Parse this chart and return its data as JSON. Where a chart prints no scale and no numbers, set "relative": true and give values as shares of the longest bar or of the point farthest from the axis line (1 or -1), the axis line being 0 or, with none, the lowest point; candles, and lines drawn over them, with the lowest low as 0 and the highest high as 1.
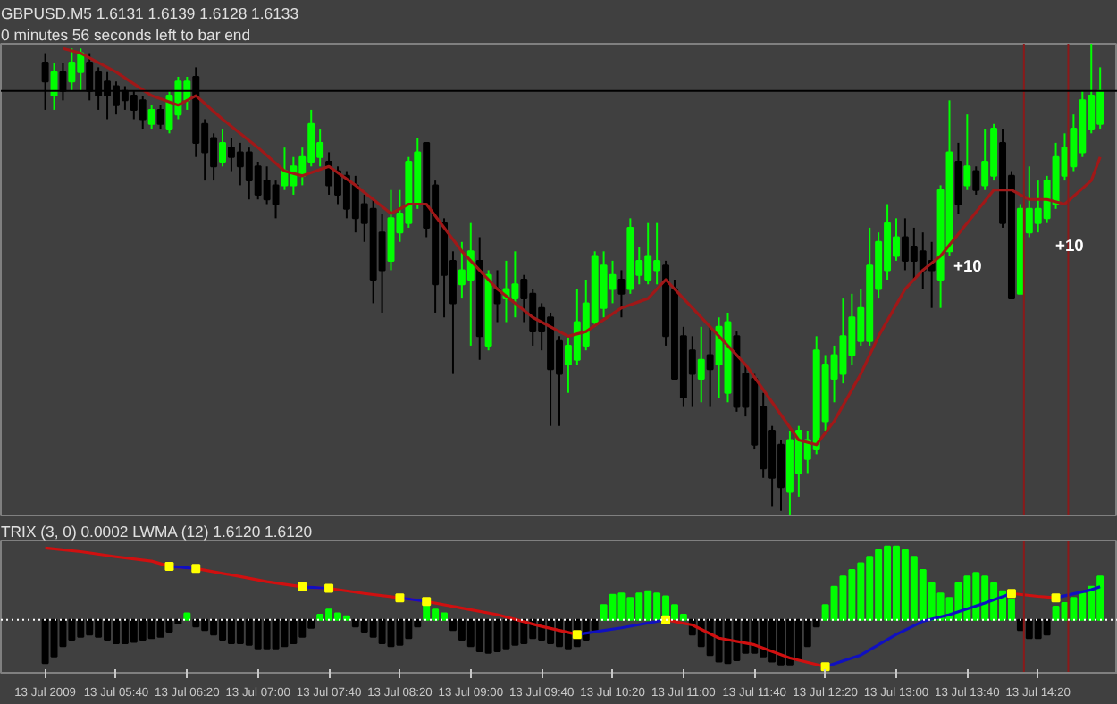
{
  "chart_data": [
    {
      "type": "candlestick",
      "title": "GBPUSD.M5  1.6131 1.6139 1.6128 1.6133",
      "subtitle": "0 minutes 56 seconds left to bar end",
      "relative": true,
      "tick_labels": false,
      "xlim": [
        "2009-07-13T04:35",
        "2009-07-13T15:05"
      ],
      "x": [
        "2009-07-13T05:00",
        "2009-07-13T05:05",
        "2009-07-13T05:10",
        "2009-07-13T05:15",
        "2009-07-13T05:20",
        "2009-07-13T05:25",
        "2009-07-13T05:30",
        "2009-07-13T05:35",
        "2009-07-13T05:40",
        "2009-07-13T05:45",
        "2009-07-13T05:50",
        "2009-07-13T05:55",
        "2009-07-13T06:00",
        "2009-07-13T06:05",
        "2009-07-13T06:10",
        "2009-07-13T06:15",
        "2009-07-13T06:20",
        "2009-07-13T06:25",
        "2009-07-13T06:30",
        "2009-07-13T06:35",
        "2009-07-13T06:40",
        "2009-07-13T06:45",
        "2009-07-13T06:50",
        "2009-07-13T06:55",
        "2009-07-13T07:00",
        "2009-07-13T07:05",
        "2009-07-13T07:10",
        "2009-07-13T07:15",
        "2009-07-13T07:20",
        "2009-07-13T07:25",
        "2009-07-13T07:30",
        "2009-07-13T07:35",
        "2009-07-13T07:40",
        "2009-07-13T07:45",
        "2009-07-13T07:50",
        "2009-07-13T07:55",
        "2009-07-13T08:00",
        "2009-07-13T08:05",
        "2009-07-13T08:10",
        "2009-07-13T08:15",
        "2009-07-13T08:20",
        "2009-07-13T08:25",
        "2009-07-13T08:30",
        "2009-07-13T08:35",
        "2009-07-13T08:40",
        "2009-07-13T08:45",
        "2009-07-13T08:50",
        "2009-07-13T08:55",
        "2009-07-13T09:00",
        "2009-07-13T09:05",
        "2009-07-13T09:10",
        "2009-07-13T09:15",
        "2009-07-13T09:20",
        "2009-07-13T09:25",
        "2009-07-13T09:30",
        "2009-07-13T09:35",
        "2009-07-13T09:40",
        "2009-07-13T09:45",
        "2009-07-13T09:50",
        "2009-07-13T09:55",
        "2009-07-13T10:00",
        "2009-07-13T10:05",
        "2009-07-13T10:10",
        "2009-07-13T10:15",
        "2009-07-13T10:20",
        "2009-07-13T10:25",
        "2009-07-13T10:30",
        "2009-07-13T10:35",
        "2009-07-13T10:40",
        "2009-07-13T10:45",
        "2009-07-13T10:50",
        "2009-07-13T10:55",
        "2009-07-13T11:00",
        "2009-07-13T11:05",
        "2009-07-13T11:10",
        "2009-07-13T11:15",
        "2009-07-13T11:20",
        "2009-07-13T11:25",
        "2009-07-13T11:30",
        "2009-07-13T11:35",
        "2009-07-13T11:40",
        "2009-07-13T11:45",
        "2009-07-13T11:50",
        "2009-07-13T11:55",
        "2009-07-13T12:00",
        "2009-07-13T12:05",
        "2009-07-13T12:10",
        "2009-07-13T12:15",
        "2009-07-13T12:20",
        "2009-07-13T12:25",
        "2009-07-13T12:30",
        "2009-07-13T12:35",
        "2009-07-13T12:40",
        "2009-07-13T12:45",
        "2009-07-13T12:50",
        "2009-07-13T12:55",
        "2009-07-13T13:00",
        "2009-07-13T13:05",
        "2009-07-13T13:10",
        "2009-07-13T13:15",
        "2009-07-13T13:20",
        "2009-07-13T13:25",
        "2009-07-13T13:30",
        "2009-07-13T13:35",
        "2009-07-13T13:40",
        "2009-07-13T13:45",
        "2009-07-13T13:50",
        "2009-07-13T13:55",
        "2009-07-13T14:00",
        "2009-07-13T14:05",
        "2009-07-13T14:10",
        "2009-07-13T14:15",
        "2009-07-13T14:20",
        "2009-07-13T14:25",
        "2009-07-13T14:30",
        "2009-07-13T14:35",
        "2009-07-13T14:40",
        "2009-07-13T14:45",
        "2009-07-13T14:50",
        "2009-07-13T14:55"
      ],
      "ohlc": [
        [
          0.96,
          0.98,
          0.86,
          0.92
        ],
        [
          0.89,
          0.96,
          0.86,
          0.94
        ],
        [
          0.94,
          0.96,
          0.88,
          0.9
        ],
        [
          0.92,
          0.99,
          0.9,
          0.96
        ],
        [
          0.94,
          0.99,
          0.9,
          0.98
        ],
        [
          0.96,
          0.98,
          0.88,
          0.9
        ],
        [
          0.94,
          0.95,
          0.86,
          0.89
        ],
        [
          0.92,
          0.94,
          0.84,
          0.89
        ],
        [
          0.91,
          0.92,
          0.85,
          0.87
        ],
        [
          0.9,
          0.91,
          0.86,
          0.88
        ],
        [
          0.89,
          0.9,
          0.84,
          0.86
        ],
        [
          0.88,
          0.89,
          0.82,
          0.84
        ],
        [
          0.83,
          0.87,
          0.82,
          0.86
        ],
        [
          0.86,
          0.87,
          0.82,
          0.83
        ],
        [
          0.82,
          0.9,
          0.81,
          0.89
        ],
        [
          0.85,
          0.93,
          0.84,
          0.92
        ],
        [
          0.88,
          0.93,
          0.86,
          0.92
        ],
        [
          0.93,
          0.95,
          0.76,
          0.79
        ],
        [
          0.83,
          0.84,
          0.71,
          0.77
        ],
        [
          0.8,
          0.81,
          0.71,
          0.74
        ],
        [
          0.75,
          0.82,
          0.74,
          0.79
        ],
        [
          0.78,
          0.8,
          0.73,
          0.76
        ],
        [
          0.77,
          0.79,
          0.7,
          0.74
        ],
        [
          0.77,
          0.78,
          0.67,
          0.71
        ],
        [
          0.74,
          0.75,
          0.67,
          0.68
        ],
        [
          0.71,
          0.74,
          0.66,
          0.67
        ],
        [
          0.7,
          0.71,
          0.63,
          0.66
        ],
        [
          0.7,
          0.78,
          0.69,
          0.73
        ],
        [
          0.7,
          0.76,
          0.68,
          0.74
        ],
        [
          0.72,
          0.78,
          0.7,
          0.76
        ],
        [
          0.75,
          0.86,
          0.74,
          0.83
        ],
        [
          0.76,
          0.82,
          0.74,
          0.79
        ],
        [
          0.75,
          0.77,
          0.68,
          0.7
        ],
        [
          0.73,
          0.74,
          0.66,
          0.68
        ],
        [
          0.72,
          0.73,
          0.63,
          0.65
        ],
        [
          0.7,
          0.72,
          0.6,
          0.63
        ],
        [
          0.66,
          0.68,
          0.58,
          0.62
        ],
        [
          0.65,
          0.67,
          0.45,
          0.5
        ],
        [
          0.6,
          0.64,
          0.43,
          0.52
        ],
        [
          0.54,
          0.69,
          0.52,
          0.63
        ],
        [
          0.6,
          0.69,
          0.58,
          0.64
        ],
        [
          0.62,
          0.76,
          0.61,
          0.75
        ],
        [
          0.66,
          0.8,
          0.65,
          0.77
        ],
        [
          0.79,
          0.79,
          0.59,
          0.61
        ],
        [
          0.7,
          0.71,
          0.43,
          0.49
        ],
        [
          0.62,
          0.63,
          0.42,
          0.51
        ],
        [
          0.54,
          0.56,
          0.3,
          0.45
        ],
        [
          0.49,
          0.58,
          0.46,
          0.52
        ],
        [
          0.5,
          0.62,
          0.36,
          0.56
        ],
        [
          0.54,
          0.59,
          0.33,
          0.38
        ],
        [
          0.36,
          0.52,
          0.35,
          0.51
        ],
        [
          0.48,
          0.52,
          0.41,
          0.45
        ],
        [
          0.46,
          0.54,
          0.41,
          0.48
        ],
        [
          0.46,
          0.56,
          0.42,
          0.49
        ],
        [
          0.5,
          0.51,
          0.41,
          0.46
        ],
        [
          0.47,
          0.48,
          0.36,
          0.39
        ],
        [
          0.44,
          0.45,
          0.35,
          0.39
        ],
        [
          0.42,
          0.43,
          0.19,
          0.31
        ],
        [
          0.37,
          0.38,
          0.19,
          0.3
        ],
        [
          0.32,
          0.38,
          0.26,
          0.36
        ],
        [
          0.33,
          0.48,
          0.32,
          0.41
        ],
        [
          0.36,
          0.5,
          0.35,
          0.45
        ],
        [
          0.41,
          0.56,
          0.4,
          0.55
        ],
        [
          0.44,
          0.56,
          0.42,
          0.53
        ],
        [
          0.48,
          0.54,
          0.45,
          0.51
        ],
        [
          0.5,
          0.52,
          0.42,
          0.47
        ],
        [
          0.48,
          0.63,
          0.47,
          0.61
        ],
        [
          0.51,
          0.57,
          0.49,
          0.54
        ],
        [
          0.5,
          0.62,
          0.49,
          0.55
        ],
        [
          0.52,
          0.62,
          0.49,
          0.54
        ],
        [
          0.53,
          0.54,
          0.36,
          0.38
        ],
        [
          0.48,
          0.5,
          0.29,
          0.29
        ],
        [
          0.38,
          0.4,
          0.23,
          0.25
        ],
        [
          0.35,
          0.38,
          0.23,
          0.3
        ],
        [
          0.29,
          0.4,
          0.24,
          0.33
        ],
        [
          0.34,
          0.4,
          0.23,
          0.31
        ],
        [
          0.32,
          0.42,
          0.25,
          0.4
        ],
        [
          0.26,
          0.43,
          0.24,
          0.41
        ],
        [
          0.38,
          0.39,
          0.22,
          0.23
        ],
        [
          0.3,
          0.32,
          0.21,
          0.23
        ],
        [
          0.29,
          0.3,
          0.14,
          0.15
        ],
        [
          0.23,
          0.26,
          0.08,
          0.1
        ],
        [
          0.18,
          0.19,
          0.02,
          0.08
        ],
        [
          0.15,
          0.16,
          0.01,
          0.06
        ],
        [
          0.05,
          0.18,
          0.0,
          0.16
        ],
        [
          0.09,
          0.19,
          0.04,
          0.18
        ],
        [
          0.12,
          0.18,
          0.09,
          0.16
        ],
        [
          0.14,
          0.38,
          0.13,
          0.35
        ],
        [
          0.2,
          0.34,
          0.18,
          0.32
        ],
        [
          0.29,
          0.36,
          0.24,
          0.34
        ],
        [
          0.3,
          0.46,
          0.28,
          0.38
        ],
        [
          0.34,
          0.47,
          0.32,
          0.42
        ],
        [
          0.37,
          0.48,
          0.36,
          0.44
        ],
        [
          0.37,
          0.61,
          0.36,
          0.53
        ],
        [
          0.48,
          0.6,
          0.46,
          0.58
        ],
        [
          0.52,
          0.66,
          0.5,
          0.62
        ],
        [
          0.55,
          0.63,
          0.54,
          0.59
        ],
        [
          0.59,
          0.63,
          0.52,
          0.54
        ],
        [
          0.57,
          0.61,
          0.5,
          0.54
        ],
        [
          0.56,
          0.6,
          0.48,
          0.52
        ],
        [
          0.54,
          0.58,
          0.44,
          0.52
        ],
        [
          0.5,
          0.7,
          0.44,
          0.69
        ],
        [
          0.56,
          0.88,
          0.55,
          0.77
        ],
        [
          0.75,
          0.79,
          0.64,
          0.66
        ],
        [
          0.7,
          0.85,
          0.69,
          0.74
        ],
        [
          0.73,
          0.74,
          0.68,
          0.69
        ],
        [
          0.7,
          0.82,
          0.69,
          0.75
        ],
        [
          0.72,
          0.83,
          0.71,
          0.82
        ],
        [
          0.79,
          0.82,
          0.61,
          0.62
        ],
        [
          0.72,
          0.73,
          0.46,
          0.46
        ],
        [
          0.47,
          0.66,
          0.47,
          0.65
        ],
        [
          0.6,
          0.74,
          0.59,
          0.65
        ],
        [
          0.62,
          0.71,
          0.6,
          0.65
        ],
        [
          0.63,
          0.72,
          0.62,
          0.71
        ],
        [
          0.66,
          0.79,
          0.65,
          0.76
        ],
        [
          0.72,
          0.81,
          0.71,
          0.78
        ],
        [
          0.74,
          0.85,
          0.73,
          0.82
        ],
        [
          0.77,
          0.9,
          0.76,
          0.88
        ],
        [
          0.82,
          1.0,
          0.81,
          0.89
        ],
        [
          0.83,
          0.95,
          0.82,
          0.9
        ]
      ],
      "colors": [
        "#000000",
        "#00ff00",
        "#000000",
        "#00ff00",
        "#00ff00",
        "#000000",
        "#000000",
        "#000000",
        "#000000",
        "#000000",
        "#000000",
        "#000000",
        "#00ff00",
        "#000000",
        "#00ff00",
        "#00ff00",
        "#00ff00",
        "#000000",
        "#000000",
        "#000000",
        "#00ff00",
        "#000000",
        "#000000",
        "#000000",
        "#000000",
        "#000000",
        "#000000",
        "#00ff00",
        "#00ff00",
        "#00ff00",
        "#00ff00",
        "#00ff00",
        "#000000",
        "#000000",
        "#000000",
        "#000000",
        "#000000",
        "#000000",
        "#000000",
        "#00ff00",
        "#00ff00",
        "#00ff00",
        "#00ff00",
        "#000000",
        "#000000",
        "#000000",
        "#000000",
        "#00ff00",
        "#00ff00",
        "#000000",
        "#00ff00",
        "#000000",
        "#00ff00",
        "#00ff00",
        "#000000",
        "#000000",
        "#000000",
        "#000000",
        "#000000",
        "#00ff00",
        "#00ff00",
        "#00ff00",
        "#00ff00",
        "#00ff00",
        "#00ff00",
        "#000000",
        "#00ff00",
        "#00ff00",
        "#00ff00",
        "#00ff00",
        "#000000",
        "#000000",
        "#000000",
        "#000000",
        "#00ff00",
        "#000000",
        "#00ff00",
        "#00ff00",
        "#000000",
        "#000000",
        "#000000",
        "#000000",
        "#000000",
        "#000000",
        "#00ff00",
        "#00ff00",
        "#00ff00",
        "#00ff00",
        "#00ff00",
        "#00ff00",
        "#00ff00",
        "#00ff00",
        "#00ff00",
        "#00ff00",
        "#00ff00",
        "#00ff00",
        "#00ff00",
        "#000000",
        "#000000",
        "#000000",
        "#000000",
        "#00ff00",
        "#00ff00",
        "#000000",
        "#00ff00",
        "#000000",
        "#00ff00",
        "#00ff00",
        "#000000",
        "#000000",
        "#00ff00",
        "#00ff00",
        "#00ff00",
        "#00ff00",
        "#00ff00",
        "#00ff00",
        "#00ff00",
        "#00ff00",
        "#00ff00",
        "#00ff00"
      ],
      "series": [
        {
          "type": "line",
          "color": "#a01818",
          "x": [
            "2009-07-13T05:10",
            "2009-07-13T05:20",
            "2009-07-13T05:40",
            "2009-07-13T06:00",
            "2009-07-13T06:15",
            "2009-07-13T06:25",
            "2009-07-13T06:40",
            "2009-07-13T07:00",
            "2009-07-13T07:15",
            "2009-07-13T07:25",
            "2009-07-13T07:40",
            "2009-07-13T07:55",
            "2009-07-13T08:15",
            "2009-07-13T08:25",
            "2009-07-13T08:35",
            "2009-07-13T08:55",
            "2009-07-13T09:15",
            "2009-07-13T09:35",
            "2009-07-13T09:55",
            "2009-07-13T10:05",
            "2009-07-13T10:25",
            "2009-07-13T10:40",
            "2009-07-13T10:50",
            "2009-07-13T11:05",
            "2009-07-13T11:20",
            "2009-07-13T11:35",
            "2009-07-13T11:50",
            "2009-07-13T12:05",
            "2009-07-13T12:15",
            "2009-07-13T12:25",
            "2009-07-13T12:40",
            "2009-07-13T12:50",
            "2009-07-13T13:05",
            "2009-07-13T13:15",
            "2009-07-13T13:25",
            "2009-07-13T13:40",
            "2009-07-13T13:55",
            "2009-07-13T14:05",
            "2009-07-13T14:15",
            "2009-07-13T14:25",
            "2009-07-13T14:35",
            "2009-07-13T14:50",
            "2009-07-13T14:55"
          ],
          "values": [
            0.99,
            0.98,
            0.94,
            0.89,
            0.87,
            0.89,
            0.84,
            0.78,
            0.73,
            0.72,
            0.74,
            0.7,
            0.64,
            0.66,
            0.66,
            0.56,
            0.48,
            0.42,
            0.38,
            0.39,
            0.44,
            0.46,
            0.5,
            0.44,
            0.38,
            0.32,
            0.24,
            0.16,
            0.15,
            0.2,
            0.3,
            0.38,
            0.48,
            0.52,
            0.55,
            0.62,
            0.69,
            0.69,
            0.67,
            0.67,
            0.66,
            0.71,
            0.76
          ]
        }
      ],
      "ref_lines": [
        {
          "axis": "y",
          "value": 0.9,
          "color": "#000000"
        },
        {
          "axis": "x",
          "value": "2009-07-13T14:12",
          "color": "#8b1a1a"
        },
        {
          "axis": "x",
          "value": "2009-07-13T14:37",
          "color": "#8b1a1a"
        }
      ],
      "annotations": [
        "+10",
        "+10"
      ]
    },
    {
      "type": "bar",
      "title": "TRIX (3, 0) 0.0002  LWMA (12)  1.6120 1.6120",
      "relative": true,
      "tick_labels": "x",
      "xlim": [
        "2009-07-13T04:35",
        "2009-07-13T15:05"
      ],
      "xticks": [
        {
          "value": "2009-07-13T05:00",
          "label": "13 Jul 2009"
        },
        {
          "value": "2009-07-13T05:40",
          "label": "13 Jul 05:40"
        },
        {
          "value": "2009-07-13T06:20",
          "label": "13 Jul 06:20"
        },
        {
          "value": "2009-07-13T07:00",
          "label": "13 Jul 07:00"
        },
        {
          "value": "2009-07-13T07:40",
          "label": "13 Jul 07:40"
        },
        {
          "value": "2009-07-13T08:20",
          "label": "13 Jul 08:20"
        },
        {
          "value": "2009-07-13T09:00",
          "label": "13 Jul 09:00"
        },
        {
          "value": "2009-07-13T09:40",
          "label": "13 Jul 09:40"
        },
        {
          "value": "2009-07-13T10:20",
          "label": "13 Jul 10:20"
        },
        {
          "value": "2009-07-13T11:00",
          "label": "13 Jul 11:00"
        },
        {
          "value": "2009-07-13T11:40",
          "label": "13 Jul 11:40"
        },
        {
          "value": "2009-07-13T12:20",
          "label": "13 Jul 12:20"
        },
        {
          "value": "2009-07-13T13:00",
          "label": "13 Jul 13:00"
        },
        {
          "value": "2009-07-13T13:40",
          "label": "13 Jul 13:40"
        },
        {
          "value": "2009-07-13T14:20",
          "label": "13 Jul 14:20"
        }
      ],
      "x": [
        "2009-07-13T05:00",
        "2009-07-13T05:05",
        "2009-07-13T05:10",
        "2009-07-13T05:15",
        "2009-07-13T05:20",
        "2009-07-13T05:25",
        "2009-07-13T05:30",
        "2009-07-13T05:35",
        "2009-07-13T05:40",
        "2009-07-13T05:45",
        "2009-07-13T05:50",
        "2009-07-13T05:55",
        "2009-07-13T06:00",
        "2009-07-13T06:05",
        "2009-07-13T06:10",
        "2009-07-13T06:15",
        "2009-07-13T06:20",
        "2009-07-13T06:25",
        "2009-07-13T06:30",
        "2009-07-13T06:35",
        "2009-07-13T06:40",
        "2009-07-13T06:45",
        "2009-07-13T06:50",
        "2009-07-13T06:55",
        "2009-07-13T07:00",
        "2009-07-13T07:05",
        "2009-07-13T07:10",
        "2009-07-13T07:15",
        "2009-07-13T07:20",
        "2009-07-13T07:25",
        "2009-07-13T07:30",
        "2009-07-13T07:35",
        "2009-07-13T07:40",
        "2009-07-13T07:45",
        "2009-07-13T07:50",
        "2009-07-13T07:55",
        "2009-07-13T08:00",
        "2009-07-13T08:05",
        "2009-07-13T08:10",
        "2009-07-13T08:15",
        "2009-07-13T08:20",
        "2009-07-13T08:25",
        "2009-07-13T08:30",
        "2009-07-13T08:35",
        "2009-07-13T08:40",
        "2009-07-13T08:45",
        "2009-07-13T08:50",
        "2009-07-13T08:55",
        "2009-07-13T09:00",
        "2009-07-13T09:05",
        "2009-07-13T09:10",
        "2009-07-13T09:15",
        "2009-07-13T09:20",
        "2009-07-13T09:25",
        "2009-07-13T09:30",
        "2009-07-13T09:35",
        "2009-07-13T09:40",
        "2009-07-13T09:45",
        "2009-07-13T09:50",
        "2009-07-13T09:55",
        "2009-07-13T10:00",
        "2009-07-13T10:05",
        "2009-07-13T10:10",
        "2009-07-13T10:15",
        "2009-07-13T10:20",
        "2009-07-13T10:25",
        "2009-07-13T10:30",
        "2009-07-13T10:35",
        "2009-07-13T10:40",
        "2009-07-13T10:45",
        "2009-07-13T10:50",
        "2009-07-13T10:55",
        "2009-07-13T11:00",
        "2009-07-13T11:05",
        "2009-07-13T11:10",
        "2009-07-13T11:15",
        "2009-07-13T11:20",
        "2009-07-13T11:25",
        "2009-07-13T11:30",
        "2009-07-13T11:35",
        "2009-07-13T11:40",
        "2009-07-13T11:45",
        "2009-07-13T11:50",
        "2009-07-13T11:55",
        "2009-07-13T12:00",
        "2009-07-13T12:05",
        "2009-07-13T12:10",
        "2009-07-13T12:15",
        "2009-07-13T12:20",
        "2009-07-13T12:25",
        "2009-07-13T12:30",
        "2009-07-13T12:35",
        "2009-07-13T12:40",
        "2009-07-13T12:45",
        "2009-07-13T12:50",
        "2009-07-13T12:55",
        "2009-07-13T13:00",
        "2009-07-13T13:05",
        "2009-07-13T13:10",
        "2009-07-13T13:15",
        "2009-07-13T13:20",
        "2009-07-13T13:25",
        "2009-07-13T13:30",
        "2009-07-13T13:35",
        "2009-07-13T13:40",
        "2009-07-13T13:45",
        "2009-07-13T13:50",
        "2009-07-13T13:55",
        "2009-07-13T14:00",
        "2009-07-13T14:05",
        "2009-07-13T14:10",
        "2009-07-13T14:15",
        "2009-07-13T14:20",
        "2009-07-13T14:25",
        "2009-07-13T14:30",
        "2009-07-13T14:35",
        "2009-07-13T14:40",
        "2009-07-13T14:45",
        "2009-07-13T14:50",
        "2009-07-13T14:55"
      ],
      "series": [
        {
          "type": "bar",
          "values": [
            -0.59,
            -0.5,
            -0.36,
            -0.27,
            -0.23,
            -0.2,
            -0.23,
            -0.27,
            -0.32,
            -0.32,
            -0.3,
            -0.27,
            -0.25,
            -0.23,
            -0.16,
            -0.05,
            0.09,
            -0.09,
            -0.14,
            -0.2,
            -0.27,
            -0.32,
            -0.32,
            -0.34,
            -0.39,
            -0.39,
            -0.39,
            -0.36,
            -0.32,
            -0.23,
            -0.11,
            0.07,
            0.14,
            0.09,
            0.05,
            -0.09,
            -0.16,
            -0.23,
            -0.32,
            -0.36,
            -0.34,
            -0.25,
            -0.09,
            0.2,
            0.14,
            0.09,
            -0.14,
            -0.27,
            -0.36,
            -0.43,
            -0.45,
            -0.43,
            -0.39,
            -0.34,
            -0.32,
            -0.25,
            -0.27,
            -0.32,
            -0.36,
            -0.39,
            -0.36,
            -0.27,
            -0.14,
            0.2,
            0.34,
            0.36,
            0.3,
            0.36,
            0.39,
            0.36,
            0.32,
            0.2,
            0.07,
            -0.2,
            -0.36,
            -0.48,
            -0.57,
            -0.59,
            -0.55,
            -0.45,
            -0.45,
            -0.5,
            -0.57,
            -0.61,
            -0.61,
            -0.55,
            -0.36,
            -0.09,
            0.2,
            0.45,
            0.59,
            0.68,
            0.77,
            0.86,
            0.95,
            1.0,
            1.0,
            0.95,
            0.86,
            0.68,
            0.5,
            0.36,
            0.3,
            0.5,
            0.59,
            0.64,
            0.59,
            0.5,
            0.39,
            0.27,
            -0.14,
            -0.25,
            -0.25,
            -0.2,
            0.18,
            0.23,
            0.3,
            0.36,
            0.45,
            0.59
          ],
          "colors": [
            "#000000",
            "#000000",
            "#000000",
            "#000000",
            "#000000",
            "#000000",
            "#000000",
            "#000000",
            "#000000",
            "#000000",
            "#000000",
            "#000000",
            "#000000",
            "#000000",
            "#000000",
            "#000000",
            "#00ff00",
            "#000000",
            "#000000",
            "#000000",
            "#000000",
            "#000000",
            "#000000",
            "#000000",
            "#000000",
            "#000000",
            "#000000",
            "#000000",
            "#000000",
            "#000000",
            "#000000",
            "#00ff00",
            "#00ff00",
            "#00ff00",
            "#00ff00",
            "#000000",
            "#000000",
            "#000000",
            "#000000",
            "#000000",
            "#000000",
            "#000000",
            "#000000",
            "#00ff00",
            "#00ff00",
            "#00ff00",
            "#000000",
            "#000000",
            "#000000",
            "#000000",
            "#000000",
            "#000000",
            "#000000",
            "#000000",
            "#000000",
            "#000000",
            "#000000",
            "#000000",
            "#000000",
            "#000000",
            "#000000",
            "#000000",
            "#000000",
            "#00ff00",
            "#00ff00",
            "#00ff00",
            "#00ff00",
            "#00ff00",
            "#00ff00",
            "#00ff00",
            "#00ff00",
            "#00ff00",
            "#00ff00",
            "#000000",
            "#000000",
            "#000000",
            "#000000",
            "#000000",
            "#000000",
            "#000000",
            "#000000",
            "#000000",
            "#000000",
            "#000000",
            "#000000",
            "#000000",
            "#000000",
            "#000000",
            "#00ff00",
            "#00ff00",
            "#00ff00",
            "#00ff00",
            "#00ff00",
            "#00ff00",
            "#00ff00",
            "#00ff00",
            "#00ff00",
            "#00ff00",
            "#00ff00",
            "#00ff00",
            "#00ff00",
            "#00ff00",
            "#00ff00",
            "#00ff00",
            "#00ff00",
            "#00ff00",
            "#00ff00",
            "#00ff00",
            "#00ff00",
            "#00ff00",
            "#000000",
            "#000000",
            "#000000",
            "#000000",
            "#00ff00",
            "#00ff00",
            "#00ff00",
            "#00ff00",
            "#00ff00",
            "#00ff00"
          ]
        },
        {
          "type": "line",
          "color": "#d01010",
          "x": [
            "2009-07-13T05:00",
            "2009-07-13T05:20",
            "2009-07-13T05:40",
            "2009-07-13T06:00",
            "2009-07-13T06:10",
            "2009-07-13T06:25",
            "2009-07-13T06:50",
            "2009-07-13T07:05",
            "2009-07-13T07:25",
            "2009-07-13T07:40",
            "2009-07-13T08:00",
            "2009-07-13T08:20",
            "2009-07-13T08:35",
            "2009-07-13T08:55",
            "2009-07-13T09:15",
            "2009-07-13T09:40",
            "2009-07-13T10:00",
            "2009-07-13T10:25",
            "2009-07-13T10:50",
            "2009-07-13T11:05",
            "2009-07-13T11:20",
            "2009-07-13T11:40",
            "2009-07-13T12:00",
            "2009-07-13T12:20",
            "2009-07-13T12:40",
            "2009-07-13T13:00",
            "2009-07-13T13:15",
            "2009-07-13T13:30",
            "2009-07-13T13:50",
            "2009-07-13T14:05",
            "2009-07-13T14:20",
            "2009-07-13T14:30"
          ],
          "values": [
            0.98,
            0.93,
            0.86,
            0.8,
            0.73,
            0.7,
            0.59,
            0.52,
            0.45,
            0.43,
            0.36,
            0.3,
            0.25,
            0.16,
            0.07,
            -0.09,
            -0.2,
            null,
            0.0,
            -0.07,
            -0.25,
            -0.34,
            -0.52,
            -0.64,
            null,
            null,
            null,
            null,
            null,
            0.36,
            0.32,
            0.3
          ]
        },
        {
          "type": "line",
          "color": "#1010c0",
          "x": [
            "2009-07-13T06:10",
            "2009-07-13T06:25",
            "2009-07-13T06:50",
            "2009-07-13T07:05",
            "2009-07-13T07:25",
            "2009-07-13T07:40",
            "2009-07-13T08:00",
            "2009-07-13T08:20",
            "2009-07-13T08:35",
            "2009-07-13T08:55",
            "2009-07-13T09:15",
            "2009-07-13T09:40",
            "2009-07-13T10:00",
            "2009-07-13T10:25",
            "2009-07-13T10:50",
            "2009-07-13T11:05",
            "2009-07-13T11:20",
            "2009-07-13T11:40",
            "2009-07-13T12:00",
            "2009-07-13T12:20",
            "2009-07-13T12:40",
            "2009-07-13T13:00",
            "2009-07-13T13:15",
            "2009-07-13T13:30",
            "2009-07-13T13:50",
            "2009-07-13T14:05",
            "2009-07-13T14:20",
            "2009-07-13T14:30",
            "2009-07-13T14:50",
            "2009-07-13T14:55"
          ],
          "values": [
            0.73,
            0.7,
            null,
            null,
            0.45,
            0.43,
            null,
            0.3,
            0.25,
            null,
            null,
            null,
            -0.2,
            -0.11,
            0.0,
            null,
            null,
            null,
            null,
            -0.64,
            -0.48,
            -0.2,
            -0.02,
            0.07,
            0.23,
            0.36,
            null,
            0.3,
            0.41,
            0.45
          ]
        },
        {
          "type": "scatter",
          "color": "#ffff00",
          "marker": "square",
          "x": [
            "2009-07-13T06:10",
            "2009-07-13T06:25",
            "2009-07-13T07:25",
            "2009-07-13T07:40",
            "2009-07-13T08:20",
            "2009-07-13T08:35",
            "2009-07-13T10:00",
            "2009-07-13T10:50",
            "2009-07-13T12:20",
            "2009-07-13T14:05",
            "2009-07-13T14:30"
          ],
          "values": [
            0.73,
            0.7,
            0.45,
            0.43,
            0.3,
            0.25,
            -0.2,
            0.0,
            -0.64,
            0.36,
            0.3
          ]
        }
      ],
      "ref_lines": [
        {
          "axis": "y",
          "value": 0,
          "color": "#ffffff",
          "line_style": "dotted"
        },
        {
          "axis": "x",
          "value": "2009-07-13T14:12",
          "color": "#8b1a1a"
        },
        {
          "axis": "x",
          "value": "2009-07-13T14:37",
          "color": "#8b1a1a"
        }
      ]
    }
  ]
}
